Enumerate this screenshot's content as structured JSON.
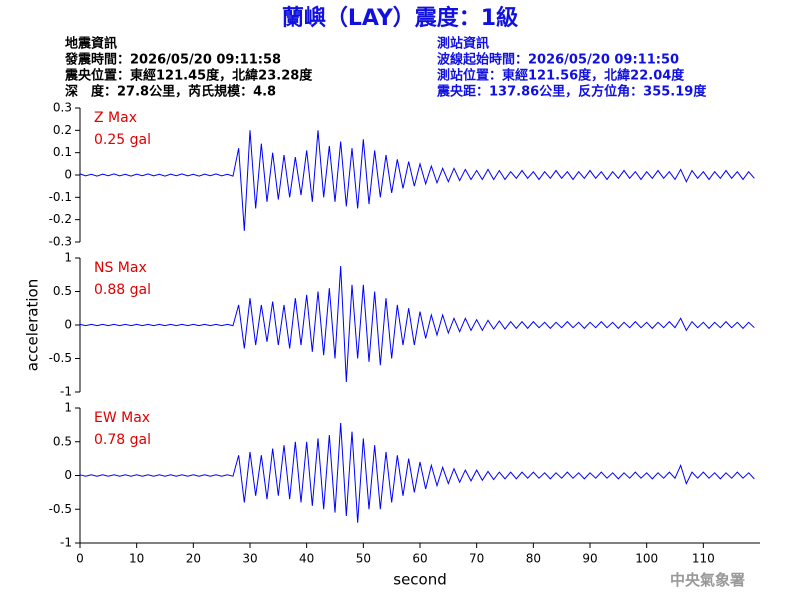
{
  "header": {
    "title": "蘭嶼（LAY）震度：1級",
    "event": [
      "地震資訊",
      "發震時間：2026/05/20 09:11:58",
      "震央位置：東經121.45度，北緯23.28度",
      "深　度：27.8公里，芮氏規模：4.8"
    ],
    "station": [
      "測站資訊",
      "波線起始時間：2026/05/20 09:11:50",
      "測站位置：東經121.56度，北緯22.04度",
      "震央距：137.86公里，反方位角：355.19度"
    ]
  },
  "footer": "中央氣象署",
  "chart_data": [
    {
      "type": "line",
      "title": "Z Max",
      "annotation": "0.25 gal",
      "color": "#0000ff",
      "xlim": [
        0,
        120
      ],
      "ylim": [
        -0.3,
        0.3
      ],
      "yticks": [
        -0.3,
        -0.2,
        -0.1,
        0,
        0.1,
        0.2,
        0.3
      ],
      "x": [
        0,
        1,
        2,
        3,
        4,
        5,
        6,
        7,
        8,
        9,
        10,
        11,
        12,
        13,
        14,
        15,
        16,
        17,
        18,
        19,
        20,
        21,
        22,
        23,
        24,
        25,
        26,
        27,
        28,
        29,
        30,
        31,
        32,
        33,
        34,
        35,
        36,
        37,
        38,
        39,
        40,
        41,
        42,
        43,
        44,
        45,
        46,
        47,
        48,
        49,
        50,
        51,
        52,
        53,
        54,
        55,
        56,
        57,
        58,
        59,
        60,
        61,
        62,
        63,
        64,
        65,
        66,
        67,
        68,
        69,
        70,
        71,
        72,
        73,
        74,
        75,
        76,
        77,
        78,
        79,
        80,
        81,
        82,
        83,
        84,
        85,
        86,
        87,
        88,
        89,
        90,
        91,
        92,
        93,
        94,
        95,
        96,
        97,
        98,
        99,
        100,
        101,
        102,
        103,
        104,
        105,
        106,
        107,
        108,
        109,
        110,
        111,
        112,
        113,
        114,
        115,
        116,
        117,
        118,
        119
      ],
      "values": [
        0.005,
        -0.004,
        0.003,
        -0.005,
        0.004,
        -0.003,
        0.005,
        -0.004,
        0.003,
        -0.005,
        0.004,
        -0.003,
        0.005,
        -0.004,
        0.003,
        -0.005,
        0.004,
        -0.003,
        0.005,
        -0.004,
        0.003,
        -0.005,
        0.004,
        -0.003,
        0.005,
        -0.004,
        0.003,
        -0.005,
        0.12,
        -0.25,
        0.2,
        -0.15,
        0.14,
        -0.12,
        0.1,
        -0.11,
        0.09,
        -0.1,
        0.08,
        -0.09,
        0.11,
        -0.12,
        0.2,
        -0.1,
        0.13,
        -0.12,
        0.15,
        -0.14,
        0.12,
        -0.15,
        0.16,
        -0.13,
        0.11,
        -0.1,
        0.09,
        -0.08,
        0.07,
        -0.06,
        0.06,
        -0.05,
        0.05,
        -0.04,
        0.04,
        -0.035,
        0.03,
        -0.03,
        0.03,
        -0.025,
        0.025,
        -0.02,
        0.02,
        -0.02,
        0.025,
        -0.02,
        0.02,
        -0.02,
        0.015,
        -0.015,
        0.02,
        -0.015,
        0.015,
        -0.02,
        0.015,
        -0.015,
        0.02,
        -0.015,
        0.015,
        -0.02,
        0.015,
        -0.015,
        0.02,
        -0.015,
        0.015,
        -0.02,
        0.015,
        -0.015,
        0.02,
        -0.015,
        0.015,
        -0.02,
        0.015,
        -0.015,
        0.02,
        -0.015,
        0.015,
        -0.02,
        0.025,
        -0.03,
        0.02,
        -0.015,
        0.015,
        -0.02,
        0.015,
        -0.015,
        0.02,
        -0.015,
        0.015,
        -0.02,
        0.015,
        -0.015
      ]
    },
    {
      "type": "line",
      "title": "NS Max",
      "annotation": "0.88 gal",
      "ylabel": "acceleration",
      "color": "#0000ff",
      "xlim": [
        0,
        120
      ],
      "ylim": [
        -1,
        1
      ],
      "yticks": [
        -1,
        -0.5,
        0,
        0.5,
        1
      ],
      "x": [
        0,
        1,
        2,
        3,
        4,
        5,
        6,
        7,
        8,
        9,
        10,
        11,
        12,
        13,
        14,
        15,
        16,
        17,
        18,
        19,
        20,
        21,
        22,
        23,
        24,
        25,
        26,
        27,
        28,
        29,
        30,
        31,
        32,
        33,
        34,
        35,
        36,
        37,
        38,
        39,
        40,
        41,
        42,
        43,
        44,
        45,
        46,
        47,
        48,
        49,
        50,
        51,
        52,
        53,
        54,
        55,
        56,
        57,
        58,
        59,
        60,
        61,
        62,
        63,
        64,
        65,
        66,
        67,
        68,
        69,
        70,
        71,
        72,
        73,
        74,
        75,
        76,
        77,
        78,
        79,
        80,
        81,
        82,
        83,
        84,
        85,
        86,
        87,
        88,
        89,
        90,
        91,
        92,
        93,
        94,
        95,
        96,
        97,
        98,
        99,
        100,
        101,
        102,
        103,
        104,
        105,
        106,
        107,
        108,
        109,
        110,
        111,
        112,
        113,
        114,
        115,
        116,
        117,
        118,
        119
      ],
      "values": [
        0.01,
        -0.01,
        0.01,
        -0.01,
        0.01,
        -0.01,
        0.01,
        -0.01,
        0.01,
        -0.01,
        0.01,
        -0.01,
        0.01,
        -0.01,
        0.01,
        -0.01,
        0.01,
        -0.01,
        0.01,
        -0.01,
        0.01,
        -0.01,
        0.01,
        -0.01,
        0.01,
        -0.01,
        0.01,
        -0.01,
        0.3,
        -0.35,
        0.4,
        -0.3,
        0.3,
        -0.25,
        0.35,
        -0.3,
        0.3,
        -0.35,
        0.4,
        -0.3,
        0.45,
        -0.4,
        0.5,
        -0.45,
        0.55,
        -0.5,
        0.88,
        -0.85,
        0.6,
        -0.5,
        0.6,
        -0.55,
        0.5,
        -0.6,
        0.4,
        -0.5,
        0.3,
        -0.3,
        0.25,
        -0.3,
        0.2,
        -0.2,
        0.15,
        -0.15,
        0.15,
        -0.12,
        0.1,
        -0.1,
        0.1,
        -0.08,
        0.08,
        -0.08,
        0.07,
        -0.06,
        0.06,
        -0.06,
        0.05,
        -0.05,
        0.05,
        -0.05,
        0.05,
        -0.04,
        0.04,
        -0.05,
        0.04,
        -0.04,
        0.05,
        -0.04,
        0.04,
        -0.05,
        0.04,
        -0.04,
        0.05,
        -0.04,
        0.04,
        -0.05,
        0.04,
        -0.04,
        0.05,
        -0.04,
        0.04,
        -0.05,
        0.04,
        -0.04,
        0.05,
        -0.04,
        0.1,
        -0.08,
        0.05,
        -0.04,
        0.04,
        -0.05,
        0.04,
        -0.04,
        0.05,
        -0.04,
        0.04,
        -0.05,
        0.04,
        -0.04
      ]
    },
    {
      "type": "line",
      "title": "EW Max",
      "annotation": "0.78 gal",
      "xlabel": "second",
      "color": "#0000ff",
      "xlim": [
        0,
        120
      ],
      "xticks": [
        0,
        10,
        20,
        30,
        40,
        50,
        60,
        70,
        80,
        90,
        100,
        110
      ],
      "ylim": [
        -1,
        1
      ],
      "yticks": [
        -1,
        -0.5,
        0,
        0.5,
        1
      ],
      "x": [
        0,
        1,
        2,
        3,
        4,
        5,
        6,
        7,
        8,
        9,
        10,
        11,
        12,
        13,
        14,
        15,
        16,
        17,
        18,
        19,
        20,
        21,
        22,
        23,
        24,
        25,
        26,
        27,
        28,
        29,
        30,
        31,
        32,
        33,
        34,
        35,
        36,
        37,
        38,
        39,
        40,
        41,
        42,
        43,
        44,
        45,
        46,
        47,
        48,
        49,
        50,
        51,
        52,
        53,
        54,
        55,
        56,
        57,
        58,
        59,
        60,
        61,
        62,
        63,
        64,
        65,
        66,
        67,
        68,
        69,
        70,
        71,
        72,
        73,
        74,
        75,
        76,
        77,
        78,
        79,
        80,
        81,
        82,
        83,
        84,
        85,
        86,
        87,
        88,
        89,
        90,
        91,
        92,
        93,
        94,
        95,
        96,
        97,
        98,
        99,
        100,
        101,
        102,
        103,
        104,
        105,
        106,
        107,
        108,
        109,
        110,
        111,
        112,
        113,
        114,
        115,
        116,
        117,
        118,
        119
      ],
      "values": [
        0.01,
        -0.01,
        0.01,
        -0.01,
        0.01,
        -0.01,
        0.01,
        -0.01,
        0.01,
        -0.01,
        0.01,
        -0.01,
        0.01,
        -0.01,
        0.01,
        -0.01,
        0.01,
        -0.01,
        0.01,
        -0.01,
        0.01,
        -0.01,
        0.01,
        -0.01,
        0.01,
        -0.01,
        0.01,
        -0.01,
        0.3,
        -0.4,
        0.35,
        -0.3,
        0.3,
        -0.35,
        0.4,
        -0.3,
        0.45,
        -0.35,
        0.5,
        -0.4,
        0.5,
        -0.45,
        0.55,
        -0.5,
        0.6,
        -0.55,
        0.78,
        -0.6,
        0.65,
        -0.7,
        0.55,
        -0.5,
        0.45,
        -0.5,
        0.35,
        -0.4,
        0.3,
        -0.3,
        0.25,
        -0.25,
        0.2,
        -0.2,
        0.15,
        -0.15,
        0.12,
        -0.12,
        0.1,
        -0.1,
        0.08,
        -0.08,
        0.08,
        -0.07,
        0.06,
        -0.06,
        0.05,
        -0.05,
        0.05,
        -0.05,
        0.05,
        -0.04,
        0.05,
        -0.04,
        0.04,
        -0.05,
        0.04,
        -0.04,
        0.05,
        -0.04,
        0.04,
        -0.05,
        0.04,
        -0.04,
        0.05,
        -0.04,
        0.04,
        -0.05,
        0.04,
        -0.04,
        0.05,
        -0.04,
        0.04,
        -0.05,
        0.04,
        -0.04,
        0.05,
        -0.04,
        0.15,
        -0.12,
        0.05,
        -0.04,
        0.05,
        -0.04,
        0.04,
        -0.05,
        0.04,
        -0.04,
        0.05,
        -0.04,
        0.04,
        -0.05
      ]
    }
  ]
}
